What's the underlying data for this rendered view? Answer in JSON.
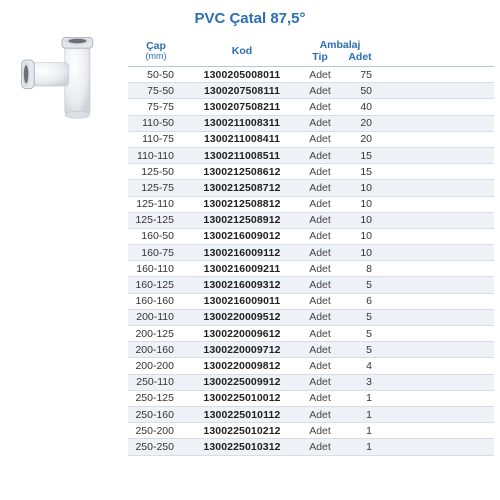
{
  "title": "PVC Çatal 87,5°",
  "headers": {
    "cap": "Çap",
    "cap_sub": "(mm)",
    "kod": "Kod",
    "ambalaj": "Ambalaj",
    "tip": "Tip",
    "adet": "Adet"
  },
  "colors": {
    "header_text": "#2a6fb5",
    "row_alt_bg": "#eef2f6",
    "border": "#d7dde5",
    "text": "#333333"
  },
  "rows": [
    {
      "cap": "50-50",
      "kod": "1300205008011",
      "tip": "Adet",
      "adet": "75"
    },
    {
      "cap": "75-50",
      "kod": "1300207508111",
      "tip": "Adet",
      "adet": "50"
    },
    {
      "cap": "75-75",
      "kod": "1300207508211",
      "tip": "Adet",
      "adet": "40"
    },
    {
      "cap": "110-50",
      "kod": "1300211008311",
      "tip": "Adet",
      "adet": "20"
    },
    {
      "cap": "110-75",
      "kod": "1300211008411",
      "tip": "Adet",
      "adet": "20"
    },
    {
      "cap": "110-110",
      "kod": "1300211008511",
      "tip": "Adet",
      "adet": "15"
    },
    {
      "cap": "125-50",
      "kod": "1300212508612",
      "tip": "Adet",
      "adet": "15"
    },
    {
      "cap": "125-75",
      "kod": "1300212508712",
      "tip": "Adet",
      "adet": "10"
    },
    {
      "cap": "125-110",
      "kod": "1300212508812",
      "tip": "Adet",
      "adet": "10"
    },
    {
      "cap": "125-125",
      "kod": "1300212508912",
      "tip": "Adet",
      "adet": "10"
    },
    {
      "cap": "160-50",
      "kod": "1300216009012",
      "tip": "Adet",
      "adet": "10"
    },
    {
      "cap": "160-75",
      "kod": "1300216009112",
      "tip": "Adet",
      "adet": "10"
    },
    {
      "cap": "160-110",
      "kod": "1300216009211",
      "tip": "Adet",
      "adet": "8"
    },
    {
      "cap": "160-125",
      "kod": "1300216009312",
      "tip": "Adet",
      "adet": "5"
    },
    {
      "cap": "160-160",
      "kod": "1300216009011",
      "tip": "Adet",
      "adet": "6"
    },
    {
      "cap": "200-110",
      "kod": "1300220009512",
      "tip": "Adet",
      "adet": "5"
    },
    {
      "cap": "200-125",
      "kod": "1300220009612",
      "tip": "Adet",
      "adet": "5"
    },
    {
      "cap": "200-160",
      "kod": "1300220009712",
      "tip": "Adet",
      "adet": "5"
    },
    {
      "cap": "200-200",
      "kod": "1300220009812",
      "tip": "Adet",
      "adet": "4"
    },
    {
      "cap": "250-110",
      "kod": "1300225009912",
      "tip": "Adet",
      "adet": "3"
    },
    {
      "cap": "250-125",
      "kod": "1300225010012",
      "tip": "Adet",
      "adet": "1"
    },
    {
      "cap": "250-160",
      "kod": "1300225010112",
      "tip": "Adet",
      "adet": "1"
    },
    {
      "cap": "250-200",
      "kod": "1300225010212",
      "tip": "Adet",
      "adet": "1"
    },
    {
      "cap": "250-250",
      "kod": "1300225010312",
      "tip": "Adet",
      "adet": "1"
    }
  ]
}
